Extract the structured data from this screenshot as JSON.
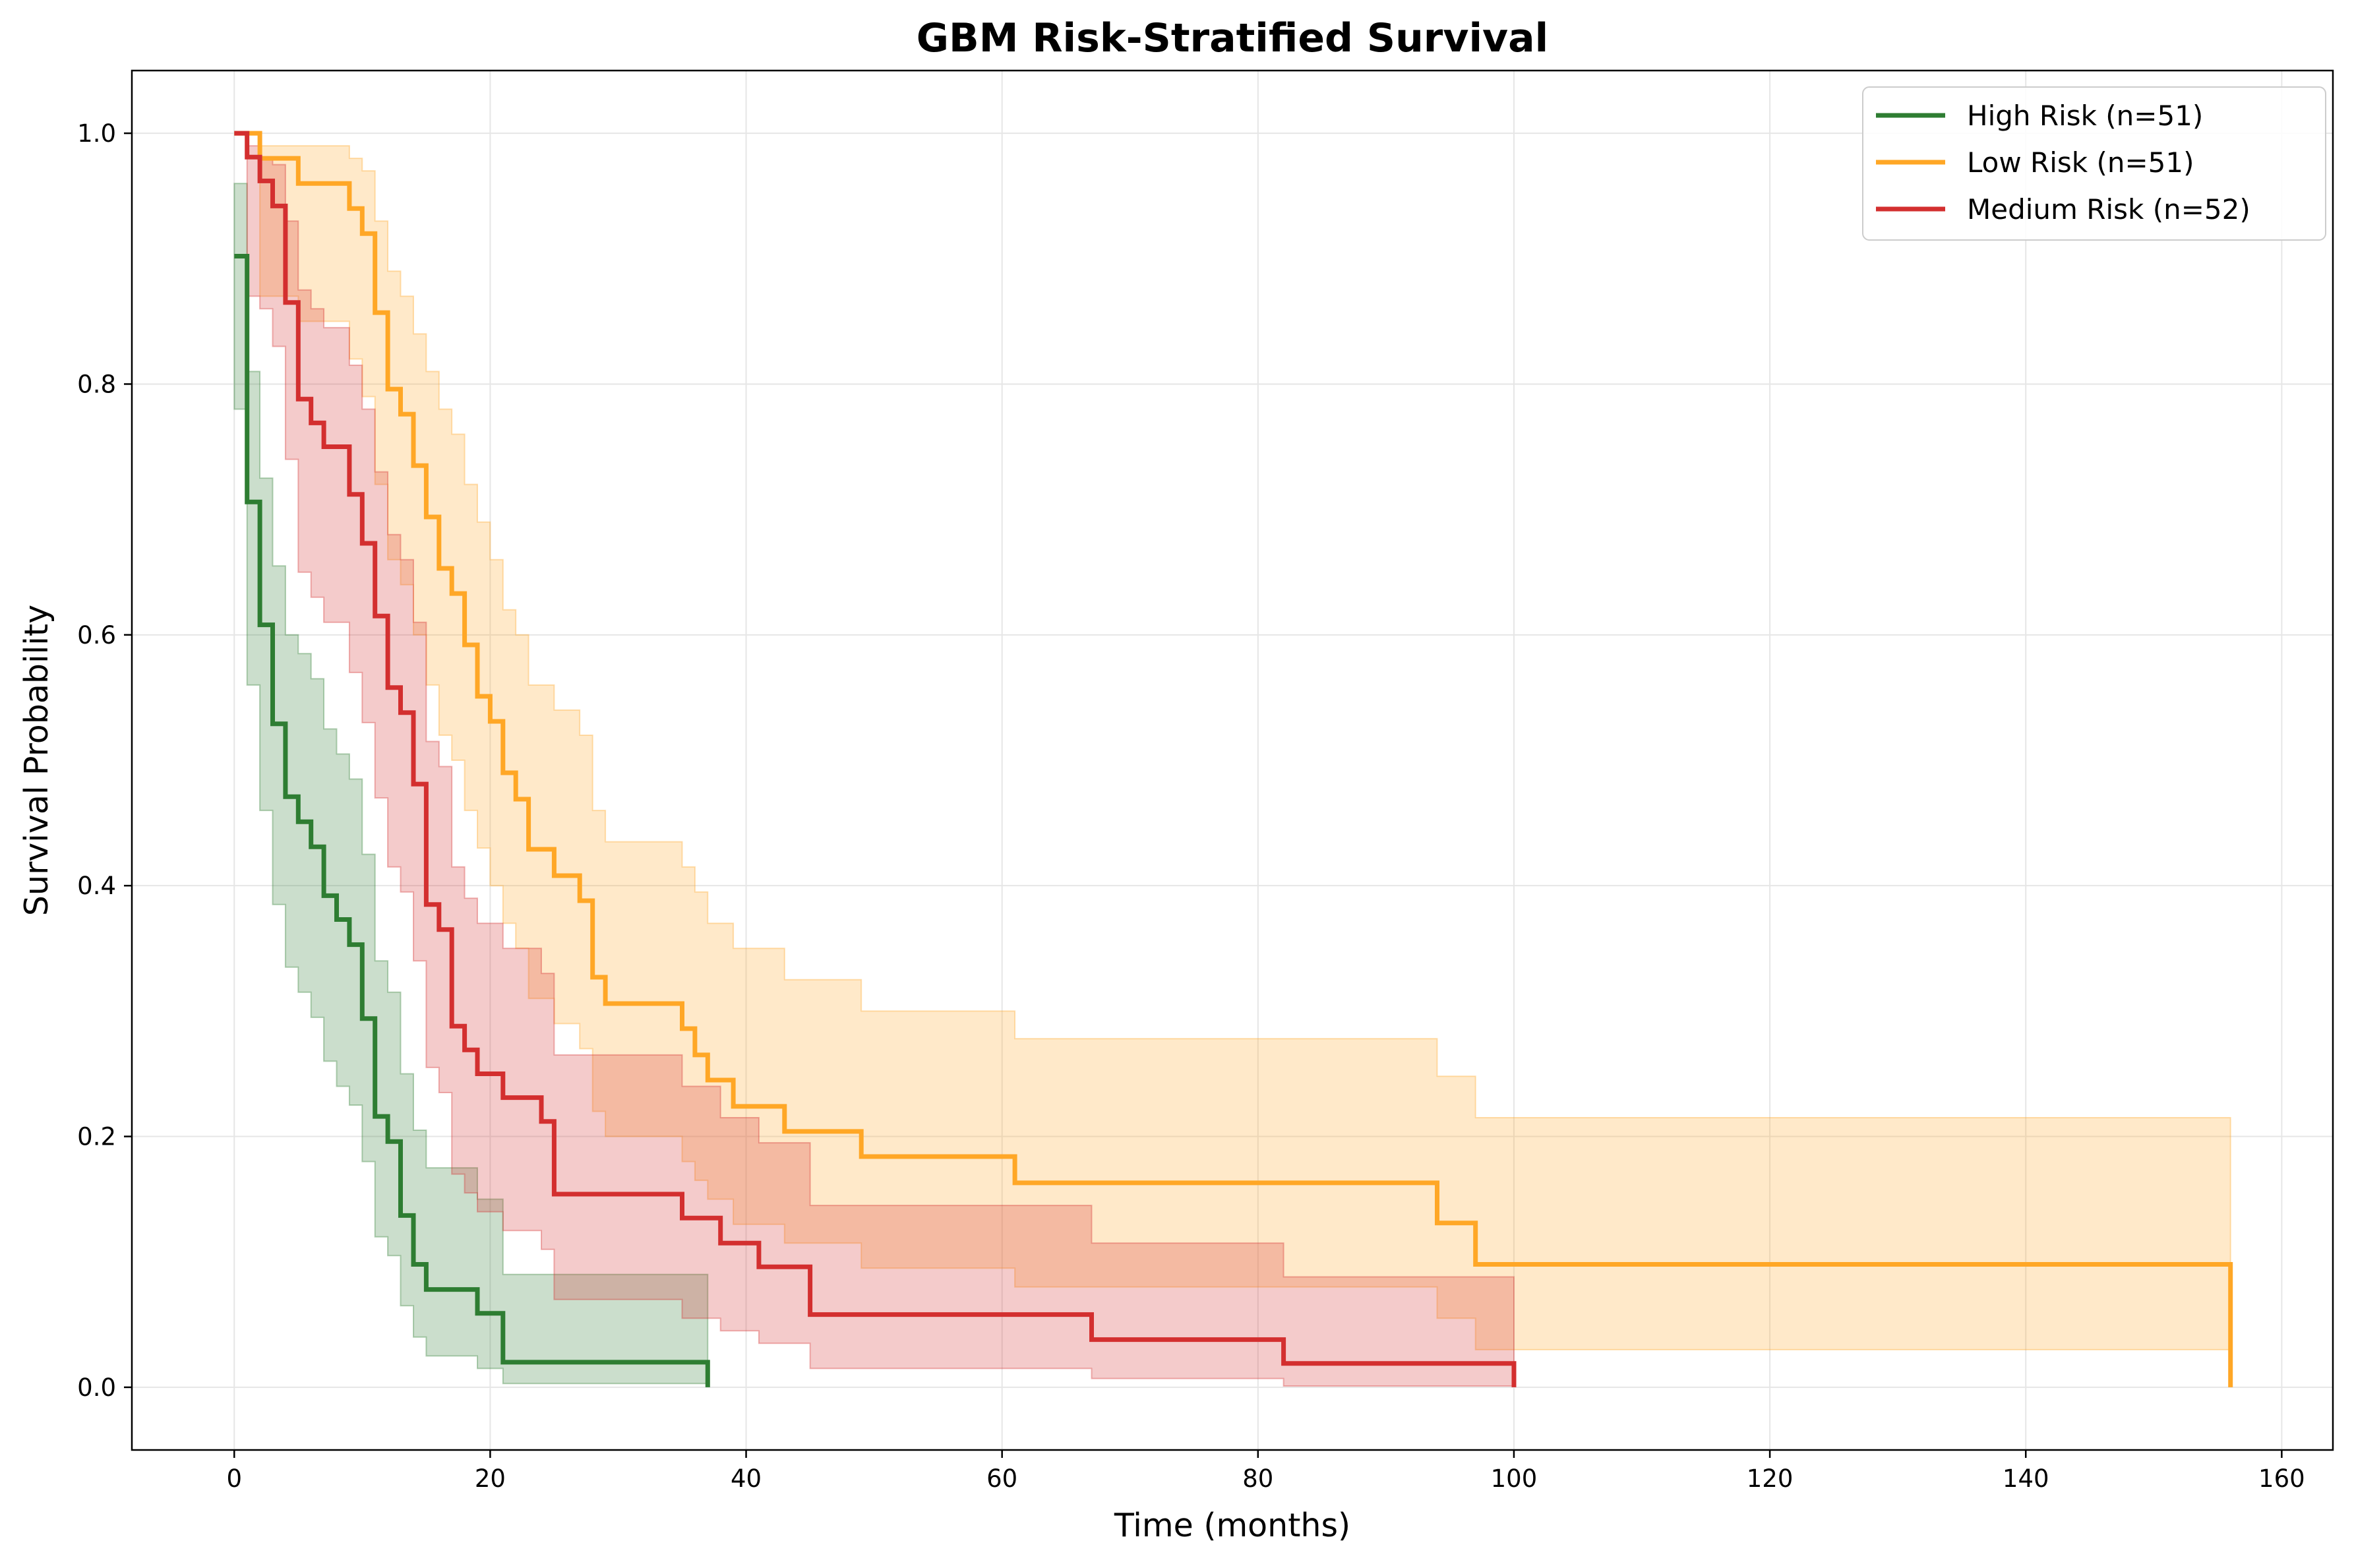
{
  "chart_data": {
    "type": "line",
    "subtype": "kaplan-meier step curves with confidence bands",
    "title": "GBM Risk-Stratified Survival",
    "xlabel": "Time (months)",
    "ylabel": "Survival Probability",
    "xlim": [
      -8,
      164
    ],
    "ylim": [
      -0.05,
      1.05
    ],
    "xticks": [
      0,
      20,
      40,
      60,
      80,
      100,
      120,
      140,
      160
    ],
    "yticks": [
      0.0,
      0.2,
      0.4,
      0.6,
      0.8,
      1.0
    ],
    "xtick_labels": [
      "0",
      "20",
      "40",
      "60",
      "80",
      "100",
      "120",
      "140",
      "160"
    ],
    "ytick_labels": [
      "0.0",
      "0.2",
      "0.4",
      "0.6",
      "0.8",
      "1.0"
    ],
    "grid": true,
    "legend_position": "top-right",
    "series": [
      {
        "name": "High Risk (n=51)",
        "color": "#2e7d32",
        "steps": [
          [
            0,
            0.902
          ],
          [
            1,
            0.706
          ],
          [
            2,
            0.608
          ],
          [
            3,
            0.529
          ],
          [
            4,
            0.471
          ],
          [
            5,
            0.451
          ],
          [
            6,
            0.431
          ],
          [
            7,
            0.392
          ],
          [
            8,
            0.373
          ],
          [
            9,
            0.353
          ],
          [
            10,
            0.294
          ],
          [
            11,
            0.216
          ],
          [
            12,
            0.196
          ],
          [
            13,
            0.137
          ],
          [
            14,
            0.098
          ],
          [
            15,
            0.078
          ],
          [
            19,
            0.059
          ],
          [
            21,
            0.02
          ],
          [
            37,
            0.02
          ]
        ],
        "end": 37,
        "ci": [
          [
            0,
            0.78,
            0.96
          ],
          [
            1,
            0.56,
            0.81
          ],
          [
            2,
            0.46,
            0.725
          ],
          [
            3,
            0.385,
            0.655
          ],
          [
            4,
            0.335,
            0.6
          ],
          [
            5,
            0.315,
            0.585
          ],
          [
            6,
            0.295,
            0.565
          ],
          [
            7,
            0.26,
            0.525
          ],
          [
            8,
            0.24,
            0.505
          ],
          [
            9,
            0.225,
            0.485
          ],
          [
            10,
            0.18,
            0.425
          ],
          [
            11,
            0.12,
            0.34
          ],
          [
            12,
            0.105,
            0.315
          ],
          [
            13,
            0.065,
            0.25
          ],
          [
            14,
            0.04,
            0.205
          ],
          [
            15,
            0.025,
            0.175
          ],
          [
            19,
            0.015,
            0.15
          ],
          [
            21,
            0.003,
            0.09
          ],
          [
            37,
            0.003,
            0.09
          ]
        ]
      },
      {
        "name": "Low Risk (n=51)",
        "color": "#ffa726",
        "steps": [
          [
            0,
            1.0
          ],
          [
            2,
            0.98
          ],
          [
            3,
            0.98
          ],
          [
            5,
            0.96
          ],
          [
            9,
            0.94
          ],
          [
            10,
            0.92
          ],
          [
            11,
            0.857
          ],
          [
            12,
            0.796
          ],
          [
            13,
            0.776
          ],
          [
            14,
            0.735
          ],
          [
            15,
            0.694
          ],
          [
            16,
            0.653
          ],
          [
            17,
            0.633
          ],
          [
            18,
            0.592
          ],
          [
            19,
            0.551
          ],
          [
            20,
            0.531
          ],
          [
            21,
            0.49
          ],
          [
            22,
            0.469
          ],
          [
            23,
            0.429
          ],
          [
            25,
            0.408
          ],
          [
            27,
            0.388
          ],
          [
            28,
            0.327
          ],
          [
            29,
            0.306
          ],
          [
            35,
            0.286
          ],
          [
            36,
            0.265
          ],
          [
            37,
            0.245
          ],
          [
            39,
            0.224
          ],
          [
            43,
            0.204
          ],
          [
            49,
            0.184
          ],
          [
            61,
            0.163
          ],
          [
            94,
            0.131
          ],
          [
            97,
            0.098
          ],
          [
            156,
            0.098
          ]
        ],
        "end": 156,
        "ci": [
          [
            0,
            1.0,
            1.0
          ],
          [
            2,
            0.87,
            0.99
          ],
          [
            5,
            0.85,
            0.99
          ],
          [
            9,
            0.82,
            0.98
          ],
          [
            10,
            0.79,
            0.97
          ],
          [
            11,
            0.72,
            0.93
          ],
          [
            12,
            0.66,
            0.89
          ],
          [
            13,
            0.64,
            0.87
          ],
          [
            14,
            0.6,
            0.84
          ],
          [
            15,
            0.56,
            0.81
          ],
          [
            16,
            0.52,
            0.78
          ],
          [
            17,
            0.5,
            0.76
          ],
          [
            18,
            0.46,
            0.72
          ],
          [
            19,
            0.43,
            0.69
          ],
          [
            20,
            0.4,
            0.66
          ],
          [
            21,
            0.37,
            0.62
          ],
          [
            22,
            0.35,
            0.6
          ],
          [
            23,
            0.31,
            0.56
          ],
          [
            25,
            0.29,
            0.54
          ],
          [
            27,
            0.27,
            0.52
          ],
          [
            28,
            0.22,
            0.46
          ],
          [
            29,
            0.2,
            0.435
          ],
          [
            35,
            0.18,
            0.415
          ],
          [
            36,
            0.165,
            0.395
          ],
          [
            37,
            0.15,
            0.37
          ],
          [
            39,
            0.13,
            0.35
          ],
          [
            43,
            0.115,
            0.325
          ],
          [
            49,
            0.095,
            0.3
          ],
          [
            61,
            0.08,
            0.278
          ],
          [
            94,
            0.055,
            0.248
          ],
          [
            97,
            0.03,
            0.215
          ],
          [
            156,
            0.03,
            0.215
          ]
        ]
      },
      {
        "name": "Medium Risk (n=52)",
        "color": "#d32f2f",
        "steps": [
          [
            0,
            1.0
          ],
          [
            1,
            0.981
          ],
          [
            2,
            0.962
          ],
          [
            3,
            0.942
          ],
          [
            4,
            0.865
          ],
          [
            5,
            0.788
          ],
          [
            6,
            0.769
          ],
          [
            7,
            0.75
          ],
          [
            9,
            0.712
          ],
          [
            10,
            0.673
          ],
          [
            11,
            0.615
          ],
          [
            12,
            0.558
          ],
          [
            13,
            0.538
          ],
          [
            14,
            0.481
          ],
          [
            15,
            0.385
          ],
          [
            16,
            0.365
          ],
          [
            17,
            0.288
          ],
          [
            18,
            0.269
          ],
          [
            19,
            0.25
          ],
          [
            21,
            0.231
          ],
          [
            24,
            0.212
          ],
          [
            25,
            0.154
          ],
          [
            35,
            0.135
          ],
          [
            38,
            0.115
          ],
          [
            41,
            0.096
          ],
          [
            45,
            0.058
          ],
          [
            67,
            0.038
          ],
          [
            82,
            0.019
          ],
          [
            100,
            0.019
          ]
        ],
        "end": 100,
        "ci": [
          [
            0,
            1.0,
            1.0
          ],
          [
            1,
            0.87,
            0.99
          ],
          [
            2,
            0.86,
            0.98
          ],
          [
            3,
            0.83,
            0.975
          ],
          [
            4,
            0.74,
            0.93
          ],
          [
            5,
            0.65,
            0.875
          ],
          [
            6,
            0.63,
            0.86
          ],
          [
            7,
            0.61,
            0.845
          ],
          [
            9,
            0.57,
            0.815
          ],
          [
            10,
            0.53,
            0.78
          ],
          [
            11,
            0.47,
            0.73
          ],
          [
            12,
            0.415,
            0.68
          ],
          [
            13,
            0.395,
            0.66
          ],
          [
            14,
            0.34,
            0.61
          ],
          [
            15,
            0.255,
            0.515
          ],
          [
            16,
            0.235,
            0.495
          ],
          [
            17,
            0.17,
            0.415
          ],
          [
            18,
            0.155,
            0.39
          ],
          [
            19,
            0.14,
            0.37
          ],
          [
            21,
            0.125,
            0.35
          ],
          [
            24,
            0.11,
            0.33
          ],
          [
            25,
            0.07,
            0.265
          ],
          [
            35,
            0.055,
            0.24
          ],
          [
            38,
            0.045,
            0.215
          ],
          [
            41,
            0.035,
            0.195
          ],
          [
            45,
            0.015,
            0.145
          ],
          [
            67,
            0.007,
            0.115
          ],
          [
            82,
            0.001,
            0.088
          ],
          [
            100,
            0.001,
            0.088
          ]
        ]
      }
    ]
  }
}
